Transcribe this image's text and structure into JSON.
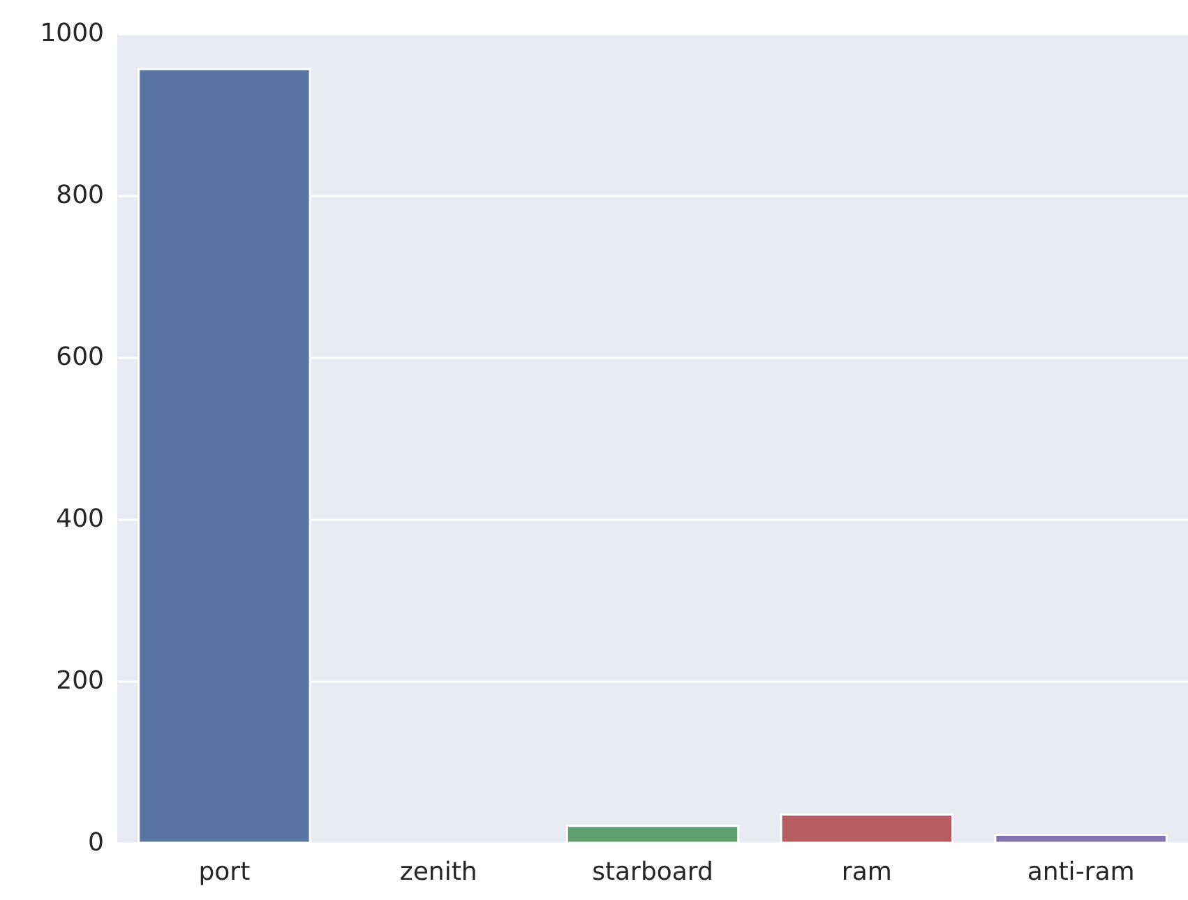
{
  "chart_data": {
    "type": "bar",
    "categories": [
      "port",
      "zenith",
      "starboard",
      "ram",
      "anti-ram"
    ],
    "values": [
      956,
      null,
      21,
      35,
      10
    ],
    "colors": [
      "#5875a4",
      "#cc8963",
      "#5f9e6e",
      "#b55d60",
      "#8172b2"
    ],
    "ylim": [
      0,
      1000
    ],
    "yticks": [
      0,
      200,
      400,
      600,
      800,
      1000
    ],
    "grid": "y"
  }
}
